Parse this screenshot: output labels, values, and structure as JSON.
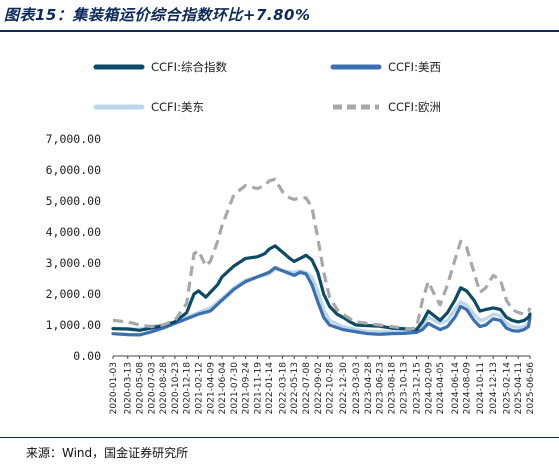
{
  "header": {
    "title": "图表15：集装箱运价综合指数环比+7.80%"
  },
  "footer": {
    "source": "来源：Wind，国金证券研究所"
  },
  "chart_data": {
    "type": "line",
    "title": "图表15：集装箱运价综合指数环比+7.80%",
    "xlabel": "",
    "ylabel": "",
    "ylim": [
      0,
      7000
    ],
    "y_ticks": [
      "0.00",
      "1,000.00",
      "2,000.00",
      "3,000.00",
      "4,000.00",
      "5,000.00",
      "6,000.00",
      "7,000.00"
    ],
    "y_tick_values": [
      0,
      1000,
      2000,
      3000,
      4000,
      5000,
      6000,
      7000
    ],
    "x_ticks": [
      "2020-01-03",
      "2020-03-13",
      "2020-05-08",
      "2020-07-03",
      "2020-08-28",
      "2020-10-23",
      "2020-12-18",
      "2021-02-12",
      "2021-04-09",
      "2021-06-04",
      "2021-07-30",
      "2021-09-24",
      "2021-11-19",
      "2022-01-14",
      "2022-03-18",
      "2022-05-13",
      "2022-07-08",
      "2022-09-02",
      "2022-10-28",
      "2022-12-30",
      "2023-03-03",
      "2023-04-28",
      "2023-06-23",
      "2023-08-18",
      "2023-10-13",
      "2023-12-15",
      "2024-02-09",
      "2024-04-05",
      "2024-06-14",
      "2024-08-09",
      "2024-10-11",
      "2024-12-13",
      "2025-02-14",
      "2025-04-11",
      "2025-06-06"
    ],
    "grid": false,
    "legend_position": "top",
    "series": [
      {
        "name": "CCFI:综合指数",
        "color": "#0d4a66",
        "style": "solid",
        "points": [
          [
            "2020-01-03",
            880
          ],
          [
            "2020-03-13",
            870
          ],
          [
            "2020-05-08",
            830
          ],
          [
            "2020-07-03",
            900
          ],
          [
            "2020-08-28",
            980
          ],
          [
            "2020-10-23",
            1100
          ],
          [
            "2020-12-18",
            1400
          ],
          [
            "2021-01-22",
            2000
          ],
          [
            "2021-02-12",
            2100
          ],
          [
            "2021-03-19",
            1900
          ],
          [
            "2021-04-09",
            2050
          ],
          [
            "2021-05-14",
            2300
          ],
          [
            "2021-06-04",
            2550
          ],
          [
            "2021-07-30",
            2900
          ],
          [
            "2021-09-24",
            3150
          ],
          [
            "2021-11-19",
            3200
          ],
          [
            "2021-12-24",
            3300
          ],
          [
            "2022-01-14",
            3450
          ],
          [
            "2022-02-11",
            3550
          ],
          [
            "2022-03-18",
            3350
          ],
          [
            "2022-04-22",
            3150
          ],
          [
            "2022-05-13",
            3050
          ],
          [
            "2022-06-10",
            3150
          ],
          [
            "2022-07-08",
            3250
          ],
          [
            "2022-08-05",
            3100
          ],
          [
            "2022-09-02",
            2700
          ],
          [
            "2022-09-30",
            2000
          ],
          [
            "2022-10-28",
            1600
          ],
          [
            "2022-12-02",
            1350
          ],
          [
            "2022-12-30",
            1250
          ],
          [
            "2023-02-03",
            1100
          ],
          [
            "2023-03-03",
            1000
          ],
          [
            "2023-04-28",
            980
          ],
          [
            "2023-06-23",
            960
          ],
          [
            "2023-08-18",
            900
          ],
          [
            "2023-10-13",
            880
          ],
          [
            "2023-11-17",
            870
          ],
          [
            "2023-12-15",
            850
          ],
          [
            "2024-01-12",
            1100
          ],
          [
            "2024-02-09",
            1450
          ],
          [
            "2024-03-08",
            1300
          ],
          [
            "2024-04-05",
            1150
          ],
          [
            "2024-05-10",
            1400
          ],
          [
            "2024-06-14",
            1800
          ],
          [
            "2024-07-12",
            2200
          ],
          [
            "2024-08-09",
            2100
          ],
          [
            "2024-09-13",
            1800
          ],
          [
            "2024-10-11",
            1450
          ],
          [
            "2024-11-08",
            1500
          ],
          [
            "2024-12-13",
            1550
          ],
          [
            "2025-01-17",
            1500
          ],
          [
            "2025-02-14",
            1250
          ],
          [
            "2025-03-14",
            1150
          ],
          [
            "2025-04-11",
            1100
          ],
          [
            "2025-05-09",
            1150
          ],
          [
            "2025-05-30",
            1250
          ],
          [
            "2025-06-06",
            1350
          ]
        ]
      },
      {
        "name": "CCFI:美西",
        "color": "#3b6fb0",
        "style": "solid",
        "points": [
          [
            "2020-01-03",
            720
          ],
          [
            "2020-03-13",
            690
          ],
          [
            "2020-05-08",
            680
          ],
          [
            "2020-07-03",
            780
          ],
          [
            "2020-08-28",
            900
          ],
          [
            "2020-10-23",
            1050
          ],
          [
            "2020-12-18",
            1200
          ],
          [
            "2021-02-12",
            1350
          ],
          [
            "2021-04-09",
            1450
          ],
          [
            "2021-06-04",
            1800
          ],
          [
            "2021-07-30",
            2150
          ],
          [
            "2021-09-24",
            2400
          ],
          [
            "2021-11-19",
            2550
          ],
          [
            "2022-01-14",
            2700
          ],
          [
            "2022-02-11",
            2850
          ],
          [
            "2022-03-18",
            2750
          ],
          [
            "2022-05-13",
            2600
          ],
          [
            "2022-06-10",
            2700
          ],
          [
            "2022-07-08",
            2650
          ],
          [
            "2022-08-05",
            2300
          ],
          [
            "2022-09-02",
            1750
          ],
          [
            "2022-09-30",
            1250
          ],
          [
            "2022-10-28",
            1000
          ],
          [
            "2022-12-30",
            850
          ],
          [
            "2023-03-03",
            780
          ],
          [
            "2023-04-28",
            720
          ],
          [
            "2023-06-23",
            700
          ],
          [
            "2023-08-18",
            720
          ],
          [
            "2023-10-13",
            730
          ],
          [
            "2023-12-15",
            760
          ],
          [
            "2024-01-12",
            850
          ],
          [
            "2024-02-09",
            1050
          ],
          [
            "2024-03-08",
            950
          ],
          [
            "2024-04-05",
            850
          ],
          [
            "2024-05-10",
            950
          ],
          [
            "2024-06-14",
            1250
          ],
          [
            "2024-07-12",
            1600
          ],
          [
            "2024-08-09",
            1500
          ],
          [
            "2024-09-13",
            1150
          ],
          [
            "2024-10-11",
            950
          ],
          [
            "2024-11-08",
            1000
          ],
          [
            "2024-12-13",
            1200
          ],
          [
            "2025-01-17",
            1150
          ],
          [
            "2025-02-14",
            900
          ],
          [
            "2025-03-14",
            820
          ],
          [
            "2025-04-11",
            800
          ],
          [
            "2025-05-09",
            850
          ],
          [
            "2025-05-30",
            950
          ],
          [
            "2025-06-06",
            1250
          ]
        ]
      },
      {
        "name": "CCFI:美东",
        "color": "#bcd6ee",
        "style": "solid",
        "points": [
          [
            "2020-01-03",
            900
          ],
          [
            "2020-03-13",
            880
          ],
          [
            "2020-05-08",
            870
          ],
          [
            "2020-07-03",
            960
          ],
          [
            "2020-08-28",
            1000
          ],
          [
            "2020-10-23",
            1100
          ],
          [
            "2020-12-18",
            1250
          ],
          [
            "2021-02-12",
            1400
          ],
          [
            "2021-04-09",
            1550
          ],
          [
            "2021-06-04",
            1850
          ],
          [
            "2021-07-30",
            2200
          ],
          [
            "2021-09-24",
            2450
          ],
          [
            "2021-11-19",
            2550
          ],
          [
            "2022-01-14",
            2650
          ],
          [
            "2022-02-11",
            2800
          ],
          [
            "2022-03-18",
            2750
          ],
          [
            "2022-05-13",
            2700
          ],
          [
            "2022-06-10",
            2750
          ],
          [
            "2022-07-08",
            2700
          ],
          [
            "2022-08-05",
            2550
          ],
          [
            "2022-09-02",
            2100
          ],
          [
            "2022-09-30",
            1500
          ],
          [
            "2022-10-28",
            1150
          ],
          [
            "2022-12-30",
            950
          ],
          [
            "2023-03-03",
            850
          ],
          [
            "2023-04-28",
            800
          ],
          [
            "2023-06-23",
            780
          ],
          [
            "2023-08-18",
            790
          ],
          [
            "2023-10-13",
            820
          ],
          [
            "2023-12-15",
            850
          ],
          [
            "2024-01-12",
            1000
          ],
          [
            "2024-02-09",
            1250
          ],
          [
            "2024-03-08",
            1150
          ],
          [
            "2024-04-05",
            1050
          ],
          [
            "2024-05-10",
            1150
          ],
          [
            "2024-06-14",
            1500
          ],
          [
            "2024-07-12",
            1750
          ],
          [
            "2024-08-09",
            1650
          ],
          [
            "2024-09-13",
            1350
          ],
          [
            "2024-10-11",
            1150
          ],
          [
            "2024-11-08",
            1200
          ],
          [
            "2024-12-13",
            1350
          ],
          [
            "2025-01-17",
            1300
          ],
          [
            "2025-02-14",
            1050
          ],
          [
            "2025-03-14",
            950
          ],
          [
            "2025-04-11",
            920
          ],
          [
            "2025-05-09",
            950
          ],
          [
            "2025-05-30",
            1050
          ],
          [
            "2025-06-06",
            1300
          ]
        ]
      },
      {
        "name": "CCFI:欧洲",
        "color": "#a8a8a8",
        "style": "dashed",
        "points": [
          [
            "2020-01-03",
            1150
          ],
          [
            "2020-03-13",
            1100
          ],
          [
            "2020-05-08",
            1000
          ],
          [
            "2020-07-03",
            950
          ],
          [
            "2020-08-28",
            1000
          ],
          [
            "2020-10-23",
            1150
          ],
          [
            "2020-12-18",
            1700
          ],
          [
            "2021-01-22",
            3300
          ],
          [
            "2021-02-12",
            3400
          ],
          [
            "2021-03-19",
            2900
          ],
          [
            "2021-04-09",
            3050
          ],
          [
            "2021-05-14",
            3700
          ],
          [
            "2021-06-04",
            4200
          ],
          [
            "2021-07-30",
            5200
          ],
          [
            "2021-09-24",
            5500
          ],
          [
            "2021-11-19",
            5400
          ],
          [
            "2021-12-24",
            5500
          ],
          [
            "2022-01-14",
            5650
          ],
          [
            "2022-02-11",
            5700
          ],
          [
            "2022-03-18",
            5300
          ],
          [
            "2022-04-22",
            5100
          ],
          [
            "2022-05-13",
            5050
          ],
          [
            "2022-06-10",
            5100
          ],
          [
            "2022-07-08",
            5100
          ],
          [
            "2022-08-05",
            4800
          ],
          [
            "2022-09-02",
            3800
          ],
          [
            "2022-09-30",
            2700
          ],
          [
            "2022-10-28",
            1900
          ],
          [
            "2022-12-02",
            1500
          ],
          [
            "2022-12-30",
            1350
          ],
          [
            "2023-02-03",
            1200
          ],
          [
            "2023-03-03",
            1100
          ],
          [
            "2023-04-28",
            1050
          ],
          [
            "2023-06-23",
            1000
          ],
          [
            "2023-08-18",
            950
          ],
          [
            "2023-10-13",
            900
          ],
          [
            "2023-11-17",
            880
          ],
          [
            "2023-12-15",
            900
          ],
          [
            "2024-01-12",
            1800
          ],
          [
            "2024-02-09",
            2400
          ],
          [
            "2024-03-08",
            2000
          ],
          [
            "2024-04-05",
            1650
          ],
          [
            "2024-05-10",
            2300
          ],
          [
            "2024-06-14",
            3100
          ],
          [
            "2024-07-12",
            3700
          ],
          [
            "2024-08-09",
            3500
          ],
          [
            "2024-09-13",
            2700
          ],
          [
            "2024-10-11",
            2050
          ],
          [
            "2024-11-08",
            2200
          ],
          [
            "2024-12-13",
            2600
          ],
          [
            "2025-01-17",
            2450
          ],
          [
            "2025-02-14",
            1800
          ],
          [
            "2025-03-14",
            1500
          ],
          [
            "2025-04-11",
            1400
          ],
          [
            "2025-05-09",
            1350
          ],
          [
            "2025-05-30",
            1450
          ],
          [
            "2025-06-06",
            1550
          ]
        ]
      }
    ]
  }
}
